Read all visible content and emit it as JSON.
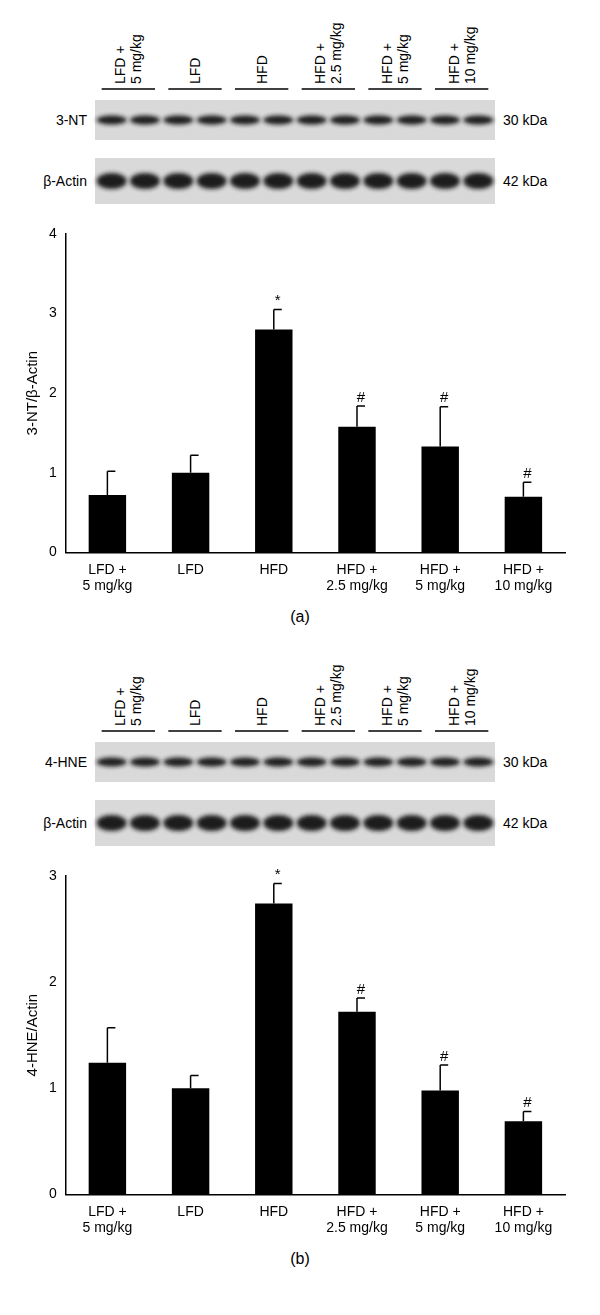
{
  "chart_data": [
    {
      "type": "bar",
      "y_label": "3-NT/β-Actin",
      "categories": [
        [
          "LFD +",
          "5 mg/kg"
        ],
        [
          "LFD"
        ],
        [
          "HFD"
        ],
        [
          "HFD +",
          "2.5 mg/kg"
        ],
        [
          "HFD +",
          "5 mg/kg"
        ],
        [
          "HFD +",
          "10 mg/kg"
        ]
      ],
      "values": [
        0.72,
        1.0,
        2.8,
        1.58,
        1.33,
        0.7
      ],
      "errors": [
        0.3,
        0.22,
        0.25,
        0.26,
        0.5,
        0.18
      ],
      "significance": [
        null,
        null,
        "*",
        "#",
        "#",
        "#"
      ],
      "color": "#000000",
      "ylim": [
        0,
        4
      ],
      "yticks": [
        0,
        1,
        2,
        3,
        4
      ],
      "grid": false
    },
    {
      "type": "bar",
      "y_label": "4-HNE/Actin",
      "categories": [
        [
          "LFD +",
          "5 mg/kg"
        ],
        [
          "LFD"
        ],
        [
          "HFD"
        ],
        [
          "HFD +",
          "2.5 mg/kg"
        ],
        [
          "HFD +",
          "5 mg/kg"
        ],
        [
          "HFD +",
          "10 mg/kg"
        ]
      ],
      "values": [
        1.24,
        1.0,
        2.74,
        1.72,
        0.98,
        0.69
      ],
      "errors": [
        0.33,
        0.12,
        0.19,
        0.13,
        0.24,
        0.09
      ],
      "significance": [
        null,
        null,
        "*",
        "#",
        "#",
        "#"
      ],
      "color": "#000000",
      "ylim": [
        0,
        3
      ],
      "yticks": [
        0,
        1,
        2,
        3
      ],
      "grid": false
    }
  ],
  "figure": {
    "panels": [
      {
        "label": "(a)",
        "blot": {
          "groups": [
            [
              "LFD +",
              "5 mg/kg"
            ],
            [
              "LFD"
            ],
            [
              "HFD"
            ],
            [
              "HFD +",
              "2.5 mg/kg"
            ],
            [
              "HFD +",
              "5 mg/kg"
            ],
            [
              "HFD +",
              "10 mg/kg"
            ]
          ],
          "rows": [
            {
              "label": "3-NT",
              "size": "30 kDa"
            },
            {
              "label": "β-Actin",
              "size": "42 kDa"
            }
          ]
        }
      },
      {
        "label": "(b)",
        "blot": {
          "groups": [
            [
              "LFD +",
              "5 mg/kg"
            ],
            [
              "LFD"
            ],
            [
              "HFD"
            ],
            [
              "HFD +",
              "2.5 mg/kg"
            ],
            [
              "HFD +",
              "5 mg/kg"
            ],
            [
              "HFD +",
              "10 mg/kg"
            ]
          ],
          "rows": [
            {
              "label": "4-HNE",
              "size": "30 kDa"
            },
            {
              "label": "β-Actin",
              "size": "42 kDa"
            }
          ]
        }
      }
    ]
  }
}
